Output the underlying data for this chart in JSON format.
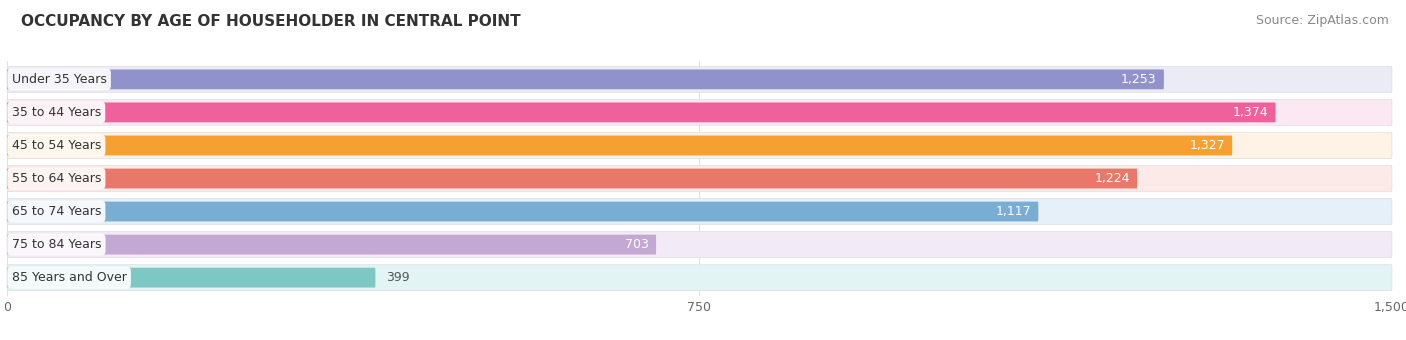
{
  "title": "OCCUPANCY BY AGE OF HOUSEHOLDER IN CENTRAL POINT",
  "source": "Source: ZipAtlas.com",
  "categories": [
    "Under 35 Years",
    "35 to 44 Years",
    "45 to 54 Years",
    "55 to 64 Years",
    "65 to 74 Years",
    "75 to 84 Years",
    "85 Years and Over"
  ],
  "values": [
    1253,
    1374,
    1327,
    1224,
    1117,
    703,
    399
  ],
  "bar_colors": [
    "#9191cc",
    "#f0609a",
    "#f5a030",
    "#e8796a",
    "#7aadd4",
    "#c4a8d4",
    "#7ec8c4"
  ],
  "bar_bg_colors": [
    "#ebebf5",
    "#fce8f2",
    "#fef3e5",
    "#fbeae8",
    "#e5f0f8",
    "#f2eaf6",
    "#e2f4f4"
  ],
  "xlim": [
    0,
    1500
  ],
  "xticks": [
    0,
    750,
    1500
  ],
  "xtick_labels": [
    "0",
    "750",
    "1,500"
  ],
  "background_color": "#ffffff",
  "title_fontsize": 11,
  "source_fontsize": 9,
  "label_fontsize": 9,
  "value_fontsize": 9
}
